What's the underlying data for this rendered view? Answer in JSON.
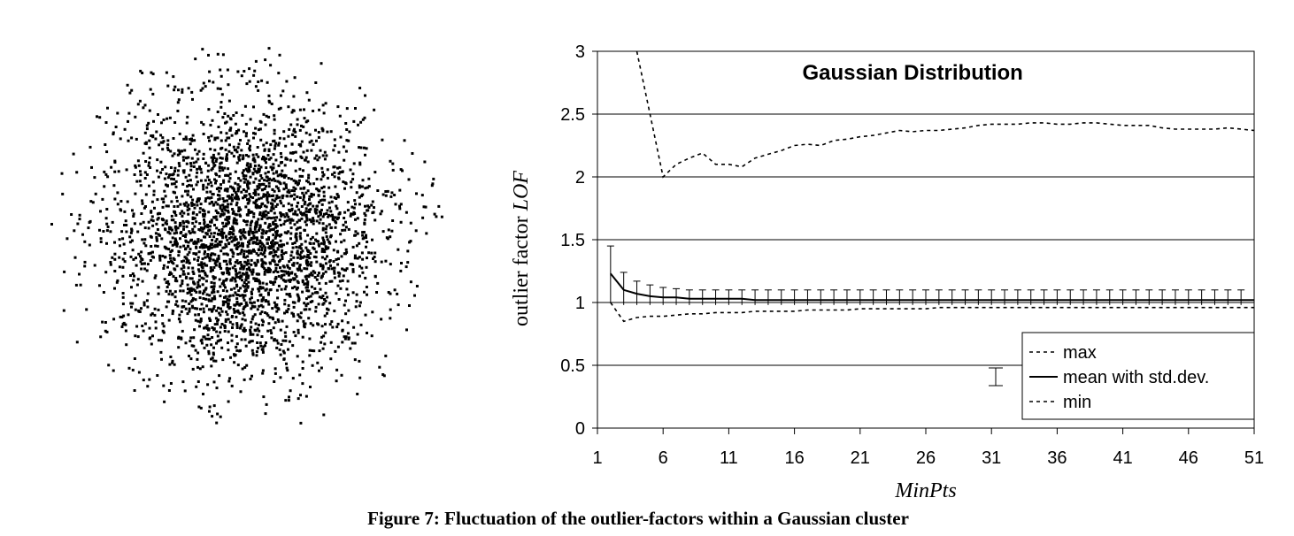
{
  "caption": "Figure 7: Fluctuation of the outlier-factors within a Gaussian cluster",
  "scatter": {
    "type": "scatter",
    "count": 3200,
    "color": "#000000"
  },
  "chart_data": {
    "type": "line",
    "title": "Gaussian Distribution",
    "xlabel": "MinPts",
    "ylabel_prefix": "outlier factor ",
    "ylabel_italic": "LOF",
    "xlim": [
      1,
      51
    ],
    "ylim": [
      0,
      3
    ],
    "xticks": [
      1,
      6,
      11,
      16,
      21,
      26,
      31,
      36,
      41,
      46,
      51
    ],
    "xtick_labels": [
      "1",
      "6",
      "11",
      "16",
      "21",
      "26",
      "31",
      "36",
      "41",
      "46",
      "51"
    ],
    "yticks": [
      0,
      0.5,
      1,
      1.5,
      2,
      2.5,
      3
    ],
    "ytick_labels": [
      "0",
      "0.5",
      "1",
      "1.5",
      "2",
      "2.5",
      "3"
    ],
    "grid": "horizontal",
    "legend_position": "bottom-right",
    "legend": {
      "max": "max",
      "mean": "mean with std.dev.",
      "min": "min"
    },
    "series": [
      {
        "name": "max",
        "style": "dashed",
        "x": [
          4,
          5,
          6,
          7,
          8,
          9,
          10,
          11,
          12,
          13,
          14,
          15,
          16,
          17,
          18,
          19,
          20,
          21,
          22,
          23,
          24,
          25,
          26,
          27,
          28,
          29,
          30,
          31,
          32,
          33,
          34,
          35,
          36,
          37,
          38,
          39,
          40,
          41,
          42,
          43,
          44,
          45,
          46,
          47,
          48,
          49,
          50,
          51
        ],
        "values": [
          3.0,
          2.5,
          2.0,
          2.1,
          2.15,
          2.19,
          2.1,
          2.1,
          2.08,
          2.15,
          2.18,
          2.21,
          2.25,
          2.26,
          2.25,
          2.29,
          2.3,
          2.32,
          2.33,
          2.35,
          2.37,
          2.36,
          2.37,
          2.37,
          2.38,
          2.39,
          2.41,
          2.42,
          2.42,
          2.42,
          2.43,
          2.43,
          2.42,
          2.42,
          2.43,
          2.43,
          2.42,
          2.41,
          2.41,
          2.41,
          2.39,
          2.38,
          2.38,
          2.38,
          2.38,
          2.39,
          2.38,
          2.37
        ]
      },
      {
        "name": "mean with std.dev.",
        "style": "solid",
        "x": [
          2,
          3,
          4,
          5,
          6,
          7,
          8,
          9,
          10,
          11,
          12,
          13,
          14,
          15,
          16,
          17,
          18,
          19,
          20,
          21,
          22,
          23,
          24,
          25,
          26,
          27,
          28,
          29,
          30,
          31,
          32,
          33,
          34,
          35,
          36,
          37,
          38,
          39,
          40,
          41,
          42,
          43,
          44,
          45,
          46,
          47,
          48,
          49,
          50,
          51
        ],
        "values": [
          1.23,
          1.1,
          1.07,
          1.05,
          1.04,
          1.04,
          1.03,
          1.03,
          1.03,
          1.03,
          1.03,
          1.02,
          1.02,
          1.02,
          1.02,
          1.02,
          1.02,
          1.02,
          1.02,
          1.02,
          1.02,
          1.02,
          1.02,
          1.02,
          1.02,
          1.02,
          1.02,
          1.02,
          1.02,
          1.02,
          1.02,
          1.02,
          1.02,
          1.02,
          1.02,
          1.02,
          1.02,
          1.02,
          1.02,
          1.02,
          1.02,
          1.02,
          1.02,
          1.02,
          1.02,
          1.02,
          1.02,
          1.02,
          1.02,
          1.02
        ],
        "error_x": [
          2,
          3,
          4,
          5,
          6,
          7,
          8,
          9,
          10,
          11,
          12,
          13,
          14,
          15,
          16,
          17,
          18,
          19,
          20,
          21,
          22,
          23,
          24,
          25,
          26,
          27,
          28,
          29,
          30,
          31,
          32,
          33,
          34,
          35,
          36,
          37,
          38,
          39,
          40,
          41,
          42,
          43,
          44,
          45,
          46,
          47,
          48,
          49,
          50
        ],
        "error_lower": [
          1.0,
          0.98,
          0.98,
          0.98,
          0.98,
          0.98,
          0.98,
          0.98,
          0.98,
          0.98,
          0.98,
          0.98,
          0.98,
          0.98,
          0.98,
          0.98,
          0.98,
          0.98,
          0.98,
          0.98,
          0.98,
          0.98,
          0.98,
          0.98,
          0.98,
          0.98,
          0.98,
          0.98,
          0.98,
          0.98,
          0.98,
          0.98,
          0.98,
          0.98,
          0.98,
          0.98,
          0.98,
          0.98,
          0.98,
          0.98,
          0.98,
          0.98,
          0.98,
          0.98,
          0.98,
          0.98,
          0.98,
          0.98,
          0.98
        ],
        "error_upper": [
          1.45,
          1.24,
          1.17,
          1.14,
          1.12,
          1.11,
          1.1,
          1.1,
          1.1,
          1.1,
          1.1,
          1.1,
          1.1,
          1.1,
          1.1,
          1.1,
          1.1,
          1.1,
          1.1,
          1.1,
          1.1,
          1.1,
          1.1,
          1.1,
          1.1,
          1.1,
          1.1,
          1.1,
          1.1,
          1.1,
          1.1,
          1.1,
          1.1,
          1.1,
          1.1,
          1.1,
          1.1,
          1.1,
          1.1,
          1.1,
          1.1,
          1.1,
          1.1,
          1.1,
          1.1,
          1.1,
          1.1,
          1.1,
          1.1
        ]
      },
      {
        "name": "min",
        "style": "dashed",
        "x": [
          2,
          3,
          4,
          5,
          6,
          7,
          8,
          9,
          10,
          11,
          12,
          13,
          14,
          15,
          16,
          17,
          18,
          19,
          20,
          21,
          22,
          23,
          24,
          25,
          26,
          27,
          28,
          29,
          30,
          31,
          32,
          33,
          34,
          35,
          36,
          37,
          38,
          39,
          40,
          41,
          42,
          43,
          44,
          45,
          46,
          47,
          48,
          49,
          50,
          51
        ],
        "values": [
          1.0,
          0.85,
          0.88,
          0.89,
          0.89,
          0.9,
          0.91,
          0.91,
          0.92,
          0.92,
          0.92,
          0.93,
          0.93,
          0.93,
          0.93,
          0.94,
          0.94,
          0.94,
          0.94,
          0.95,
          0.95,
          0.95,
          0.95,
          0.95,
          0.95,
          0.96,
          0.96,
          0.96,
          0.96,
          0.96,
          0.96,
          0.96,
          0.96,
          0.96,
          0.96,
          0.96,
          0.96,
          0.96,
          0.96,
          0.96,
          0.96,
          0.96,
          0.96,
          0.96,
          0.96,
          0.96,
          0.96,
          0.96,
          0.96,
          0.96
        ]
      }
    ]
  }
}
